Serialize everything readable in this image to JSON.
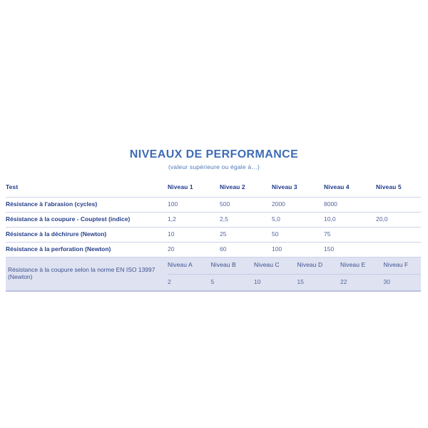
{
  "title": "NIVEAUX DE PERFORMANCE",
  "subtitle": "(valeur supérieure ou égale à…)",
  "table": {
    "header": [
      "Test",
      "Niveau 1",
      "Niveau 2",
      "Niveau 3",
      "Niveau 4",
      "Niveau 5"
    ],
    "rows": [
      {
        "label": "Résistance à l'abrasion (cycles)",
        "values": [
          "100",
          "500",
          "2000",
          "8000",
          ""
        ]
      },
      {
        "label": "Résistance à la coupure - Couptest (indice)",
        "values": [
          "1,2",
          "2,5",
          "5,0",
          "10,0",
          "20,0"
        ]
      },
      {
        "label": "Résistance à la déchirure (Newton)",
        "values": [
          "10",
          "25",
          "50",
          "75",
          ""
        ]
      },
      {
        "label": "Résistance à la perforation (Newton)",
        "values": [
          "20",
          "60",
          "100",
          "150",
          ""
        ]
      }
    ],
    "iso_section": {
      "label": "Résistance à la coupure selon la norme EN ISO 13997 (Newton)",
      "levels": [
        "Niveau A",
        "Niveau B",
        "Niveau C",
        "Niveau D",
        "Niveau E",
        "Niveau F"
      ],
      "values": [
        "2",
        "5",
        "10",
        "15",
        "22",
        "30"
      ]
    }
  },
  "colors": {
    "title_blue": "#3f6cb4",
    "header_text": "#1e3a8d",
    "label_text": "#27418c",
    "value_text": "#54659e",
    "separator_line": "#cdd4ea",
    "shaded_background": "#dfe2f1",
    "shaded_bottom_border": "#b9c0de"
  }
}
